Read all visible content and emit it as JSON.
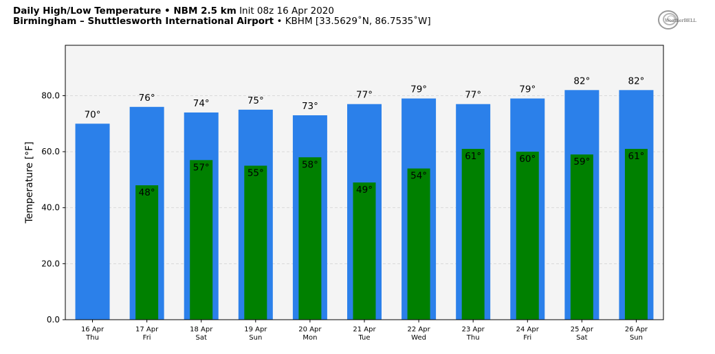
{
  "header": {
    "title_bold": "Daily High/Low Temperature • NBM 2.5 km",
    "title_init": "Init 08z 16 Apr 2020",
    "station_bold": "Birmingham – Shuttlesworth International Airport",
    "station_info": "• KBHM [33.5629˚N, 86.7535˚W]"
  },
  "logo": {
    "text": "WeatherBELL",
    "icon": "weatherbell-swirl-logo"
  },
  "colors": {
    "high": "#2b80ea",
    "low": "#008000",
    "plot_bg": "#f4f4f4",
    "grid": "#d0d0d0"
  },
  "chart_data": {
    "type": "bar",
    "ylabel": "Temperature [°F]",
    "ylim": [
      0,
      98
    ],
    "yticks": [
      0,
      20,
      40,
      60,
      80
    ],
    "ytick_labels": [
      "0.0",
      "20.0",
      "40.0",
      "60.0",
      "80.0"
    ],
    "grid": true,
    "categories": [
      {
        "date": "16 Apr",
        "day": "Thu"
      },
      {
        "date": "17 Apr",
        "day": "Fri"
      },
      {
        "date": "18 Apr",
        "day": "Sat"
      },
      {
        "date": "19 Apr",
        "day": "Sun"
      },
      {
        "date": "20 Apr",
        "day": "Mon"
      },
      {
        "date": "21 Apr",
        "day": "Tue"
      },
      {
        "date": "22 Apr",
        "day": "Wed"
      },
      {
        "date": "23 Apr",
        "day": "Thu"
      },
      {
        "date": "24 Apr",
        "day": "Fri"
      },
      {
        "date": "25 Apr",
        "day": "Sat"
      },
      {
        "date": "26 Apr",
        "day": "Sun"
      }
    ],
    "series": [
      {
        "key": "high",
        "values": [
          70,
          76,
          74,
          75,
          73,
          77,
          79,
          77,
          79,
          82,
          82
        ],
        "labels": [
          "70°",
          "76°",
          "74°",
          "75°",
          "73°",
          "77°",
          "79°",
          "77°",
          "79°",
          "82°",
          "82°"
        ]
      },
      {
        "key": "low",
        "values": [
          null,
          48,
          57,
          55,
          58,
          49,
          54,
          61,
          60,
          59,
          61
        ],
        "labels": [
          null,
          "48°",
          "57°",
          "55°",
          "58°",
          "49°",
          "54°",
          "61°",
          "60°",
          "59°",
          "61°"
        ]
      }
    ]
  }
}
